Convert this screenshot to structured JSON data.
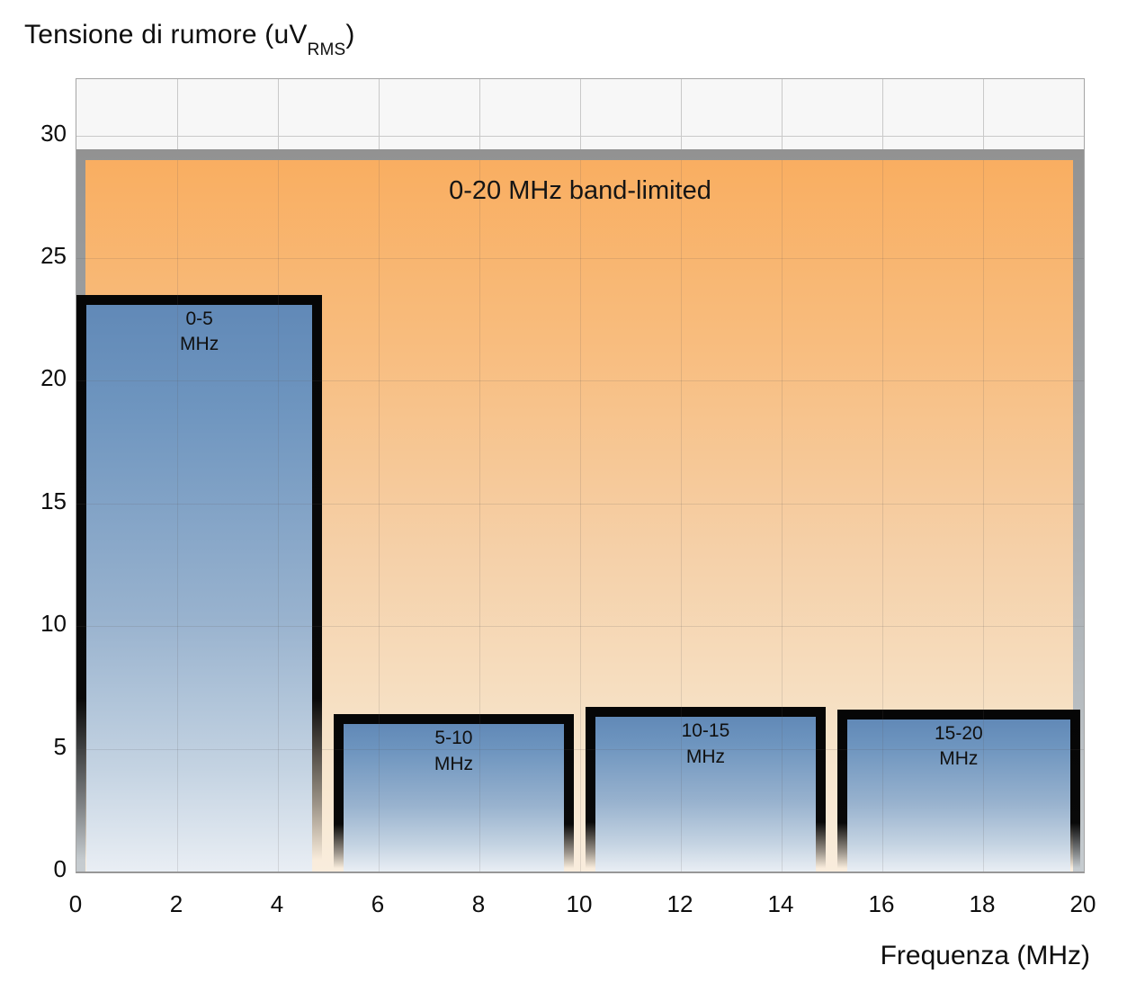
{
  "title": {
    "main": "Tensione di rumore (uV",
    "sub": "RMS",
    "close": ")"
  },
  "x_axis_title": "Frequenza (MHz)",
  "chart_data": {
    "type": "bar",
    "title": "Tensione di rumore (uV RMS)",
    "xlabel": "Frequenza (MHz)",
    "ylabel": "Tensione di rumore (uV RMS)",
    "xlim": [
      0,
      20
    ],
    "ylim": [
      0,
      32.3
    ],
    "x_ticks": [
      0,
      2,
      4,
      6,
      8,
      10,
      12,
      14,
      16,
      18,
      20
    ],
    "y_ticks": [
      0,
      5,
      10,
      15,
      20,
      25,
      30
    ],
    "grid": true,
    "legend": "none",
    "band_limited_region": {
      "label": "0-20 MHz band-limited",
      "x0": 0,
      "x1": 20,
      "value": 29
    },
    "bars": [
      {
        "label": "0-5 MHz",
        "label_lines": "0-5\nMHz",
        "x0": 0,
        "x1": 5,
        "value": 23.5
      },
      {
        "label": "5-10 MHz",
        "label_lines": "5-10\nMHz",
        "x0": 5,
        "x1": 10,
        "value": 6.4
      },
      {
        "label": "10-15 MHz",
        "label_lines": "10-15\nMHz",
        "x0": 10,
        "x1": 15,
        "value": 6.7
      },
      {
        "label": "15-20 MHz",
        "label_lines": "15-20\nMHz",
        "x0": 15,
        "x1": 20,
        "value": 6.6
      }
    ],
    "colors": {
      "band_fill_top": "#f9ae61",
      "band_fill_bottom": "#f9eddd",
      "band_border": "#929292",
      "bar_fill_top": "#6189b7",
      "bar_fill_bottom": "#e9eef4",
      "bar_border": "#060606",
      "grid": "#c9c9c9",
      "text": "#111111",
      "plot_background": "#f7f7f7"
    }
  }
}
